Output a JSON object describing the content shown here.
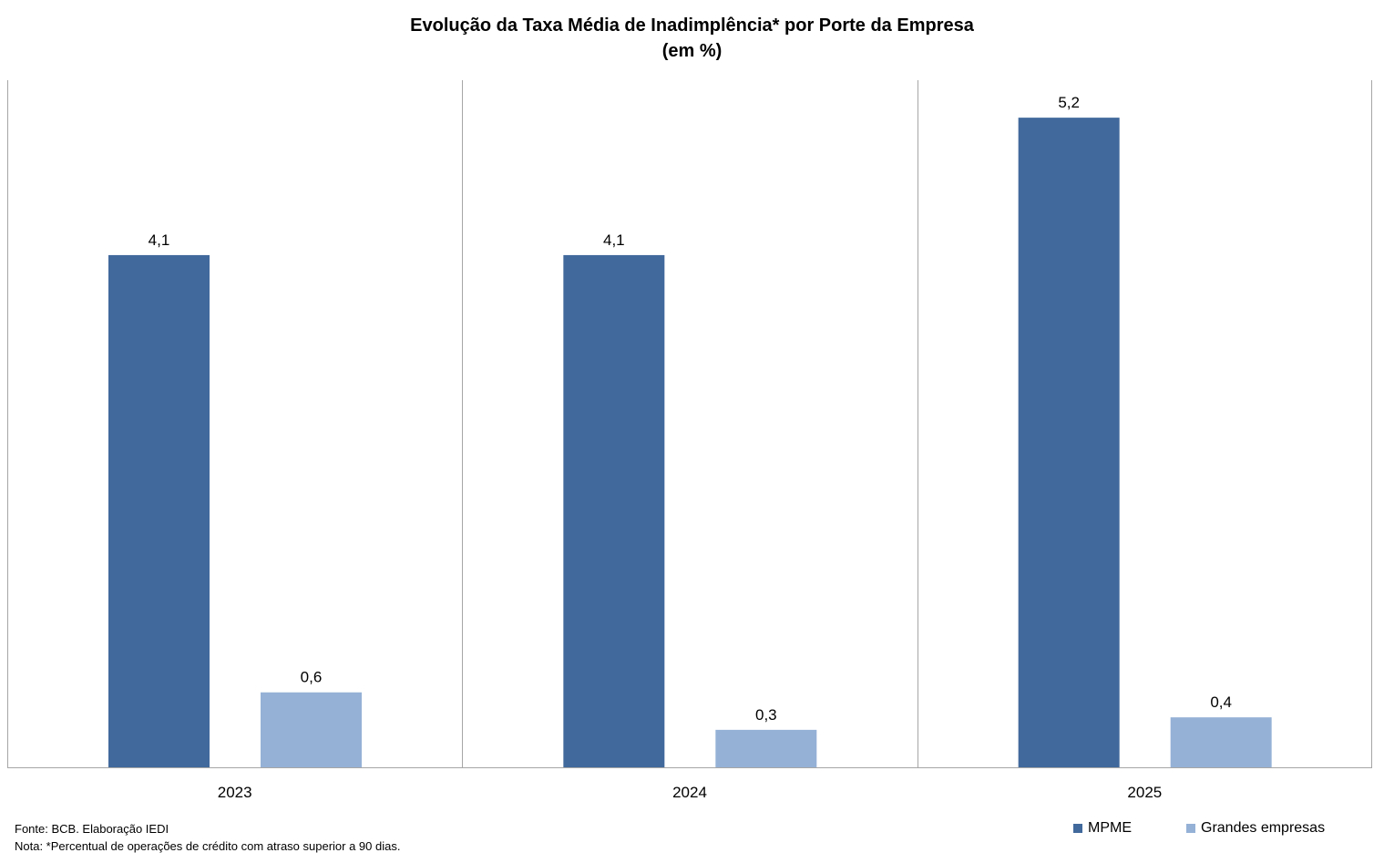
{
  "chart_data": {
    "type": "bar",
    "title": "Evolução da Taxa Média de Inadimplência* por Porte da Empresa",
    "subtitle": "(em %)",
    "categories": [
      "2023",
      "2024",
      "2025"
    ],
    "series": [
      {
        "name": "MPME",
        "values": [
          4.1,
          4.1,
          5.2
        ],
        "labels": [
          "4,1",
          "4,1",
          "5,2"
        ],
        "color": "#41699b"
      },
      {
        "name": "Grandes empresas",
        "values": [
          0.6,
          0.3,
          0.4
        ],
        "labels": [
          "0,6",
          "0,3",
          "0,4"
        ],
        "color": "#95b2d6"
      }
    ],
    "xlabel": "",
    "ylabel": "",
    "ylim": [
      0,
      5.5
    ],
    "grid": false,
    "legend": "bottom-right"
  },
  "footer": {
    "source": "Fonte: BCB. Elaboração IEDI",
    "note": "Nota: *Percentual de operações de crédito com atraso superior a 90 dias."
  },
  "colors": {
    "axis": "#a6a6a6"
  }
}
